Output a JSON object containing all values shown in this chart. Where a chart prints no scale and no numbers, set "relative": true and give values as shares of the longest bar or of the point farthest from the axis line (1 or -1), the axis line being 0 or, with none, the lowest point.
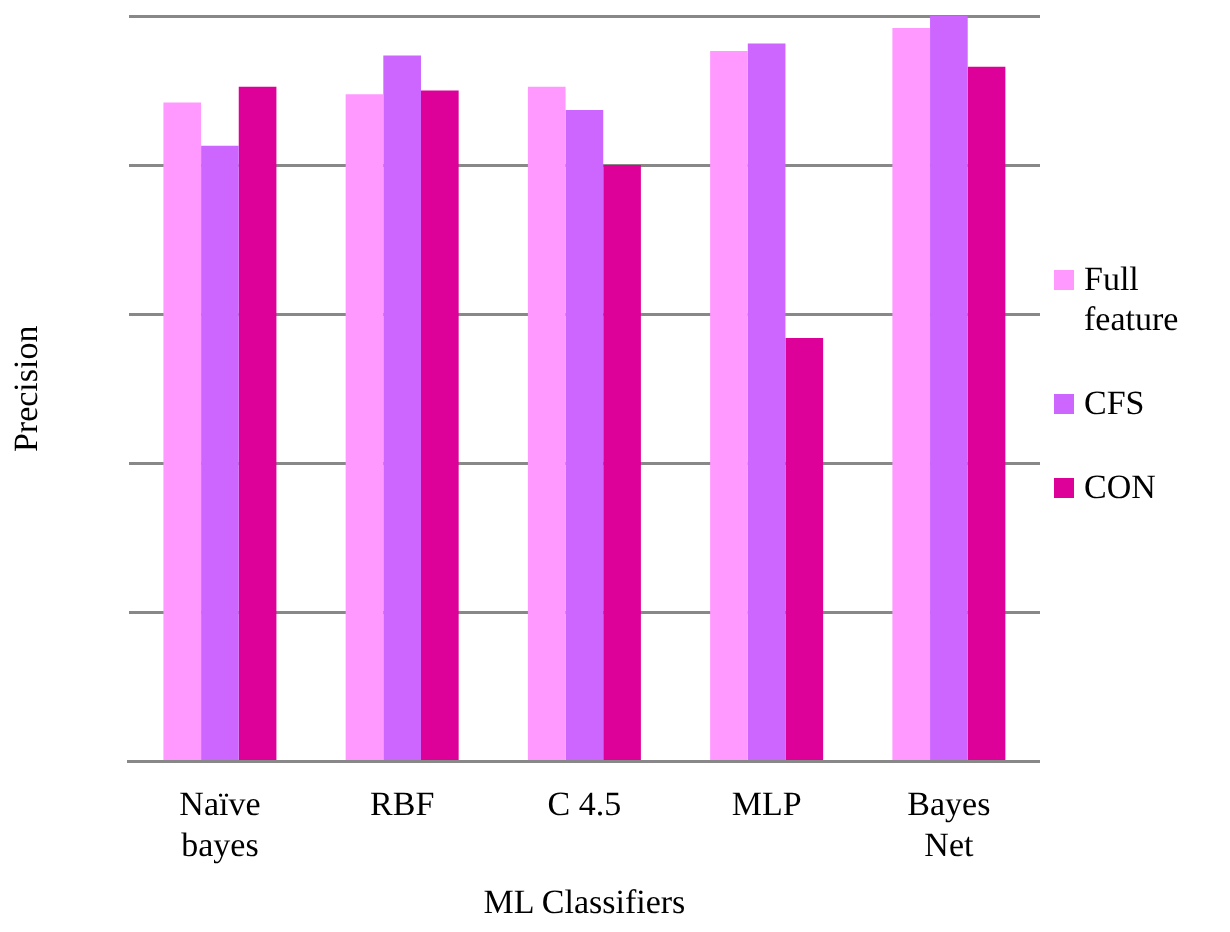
{
  "chart_data": {
    "type": "bar",
    "relative": true,
    "xlabel": "ML Classifiers",
    "ylabel": "Precision",
    "categories": [
      "Naïve bayes",
      "RBF",
      "C 4.5",
      "MLP",
      "Bayes Net"
    ],
    "series": [
      {
        "name": "Full feature",
        "color": "#ff99ff",
        "values": [
          0.884,
          0.895,
          0.905,
          0.953,
          0.984
        ]
      },
      {
        "name": "CFS",
        "color": "#cc66ff",
        "values": [
          0.826,
          0.947,
          0.874,
          0.963,
          1
        ]
      },
      {
        "name": "CON",
        "color": "#dd0099",
        "values": [
          0.905,
          0.9,
          0.8,
          0.568,
          0.932
        ]
      }
    ],
    "grid": "y",
    "legend": "right"
  }
}
